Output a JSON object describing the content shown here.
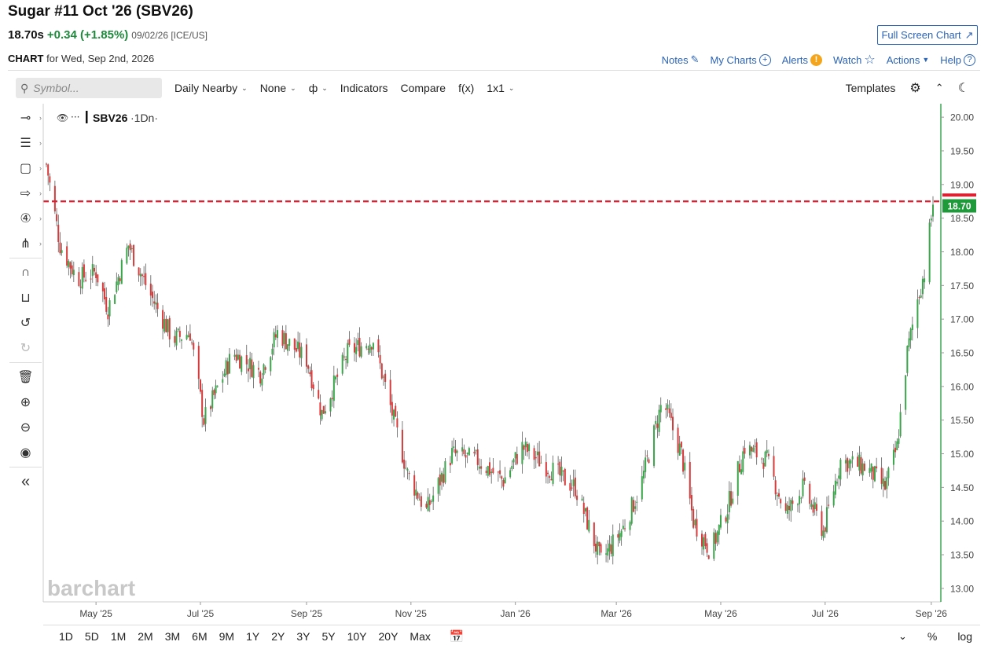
{
  "header": {
    "title": "Sugar #11 Oct '26 (SBV26)",
    "last": "18.70s",
    "change": "+0.34 (+1.85%)",
    "meta": "09/02/26 [ICE/US]",
    "fullscreen_label": "Full Screen Chart",
    "chart_word": "CHART",
    "chart_date": "for Wed, Sep 2nd, 2026"
  },
  "links": {
    "notes": "Notes",
    "mycharts": "My Charts",
    "alerts": "Alerts",
    "watch": "Watch",
    "actions": "Actions",
    "help": "Help"
  },
  "toolbar": {
    "search_placeholder": "Symbol...",
    "interval": "Daily Nearby",
    "none": "None",
    "indicators": "Indicators",
    "compare": "Compare",
    "fx": "f(x)",
    "layout": "1x1",
    "templates": "Templates"
  },
  "legend": {
    "symbol": "SBV26",
    "interval": "·1Dn·"
  },
  "watermark": "barchart",
  "bottom": {
    "ranges": [
      "1D",
      "5D",
      "1M",
      "2M",
      "3M",
      "6M",
      "9M",
      "1Y",
      "2Y",
      "3Y",
      "5Y",
      "10Y",
      "20Y",
      "Max"
    ],
    "percent": "%",
    "log": "log"
  },
  "colors": {
    "up": "#3aa54a",
    "down": "#d63a3a",
    "accent": "#2b63b5",
    "price_tag": "#1e9a3a",
    "ref_line": "#e02030"
  },
  "chart_data": {
    "type": "candlestick",
    "ylim": [
      12.8,
      20.2
    ],
    "yticks": [
      13.0,
      13.5,
      14.0,
      14.5,
      15.0,
      15.5,
      16.0,
      16.5,
      17.0,
      17.5,
      18.0,
      18.5,
      19.0,
      19.5,
      20.0
    ],
    "x_labels": [
      "May '25",
      "Jul '25",
      "Sep '25",
      "Nov '25",
      "Jan '26",
      "Mar '26",
      "May '26",
      "Jul '26",
      "Sep '26"
    ],
    "x_label_dates": [
      "2025-05-01",
      "2025-07-01",
      "2025-09-01",
      "2025-11-01",
      "2026-01-01",
      "2026-03-01",
      "2026-05-01",
      "2026-07-01",
      "2026-09-01"
    ],
    "start_date": "2025-04-02",
    "end_date": "2026-09-02",
    "last_price": 18.7,
    "last_price_label": "18.70",
    "reference_line": 18.75,
    "close_path": [
      {
        "date": "2025-04-02",
        "close": 19.3
      },
      {
        "date": "2025-04-10",
        "close": 18.1
      },
      {
        "date": "2025-04-20",
        "close": 17.6
      },
      {
        "date": "2025-05-01",
        "close": 17.7
      },
      {
        "date": "2025-05-08",
        "close": 17.15
      },
      {
        "date": "2025-05-20",
        "close": 18.1
      },
      {
        "date": "2025-06-01",
        "close": 17.4
      },
      {
        "date": "2025-06-15",
        "close": 16.7
      },
      {
        "date": "2025-06-25",
        "close": 16.8
      },
      {
        "date": "2025-07-03",
        "close": 15.5
      },
      {
        "date": "2025-07-20",
        "close": 16.5
      },
      {
        "date": "2025-08-05",
        "close": 16.2
      },
      {
        "date": "2025-08-15",
        "close": 16.8
      },
      {
        "date": "2025-09-01",
        "close": 16.4
      },
      {
        "date": "2025-09-10",
        "close": 15.6
      },
      {
        "date": "2025-09-25",
        "close": 16.5
      },
      {
        "date": "2025-10-10",
        "close": 16.7
      },
      {
        "date": "2025-10-20",
        "close": 15.7
      },
      {
        "date": "2025-10-30",
        "close": 14.7
      },
      {
        "date": "2025-11-10",
        "close": 14.15
      },
      {
        "date": "2025-11-25",
        "close": 15.0
      },
      {
        "date": "2025-12-10",
        "close": 14.9
      },
      {
        "date": "2025-12-25",
        "close": 14.6
      },
      {
        "date": "2026-01-05",
        "close": 15.1
      },
      {
        "date": "2026-01-20",
        "close": 14.8
      },
      {
        "date": "2026-02-05",
        "close": 14.5
      },
      {
        "date": "2026-02-20",
        "close": 13.4
      },
      {
        "date": "2026-03-05",
        "close": 13.9
      },
      {
        "date": "2026-03-15",
        "close": 14.5
      },
      {
        "date": "2026-03-28",
        "close": 15.8
      },
      {
        "date": "2026-04-08",
        "close": 15.0
      },
      {
        "date": "2026-04-15",
        "close": 14.0
      },
      {
        "date": "2026-04-25",
        "close": 13.55
      },
      {
        "date": "2026-05-05",
        "close": 14.2
      },
      {
        "date": "2026-05-15",
        "close": 15.1
      },
      {
        "date": "2026-05-28",
        "close": 14.9
      },
      {
        "date": "2026-06-08",
        "close": 14.1
      },
      {
        "date": "2026-06-18",
        "close": 14.5
      },
      {
        "date": "2026-06-30",
        "close": 13.85
      },
      {
        "date": "2026-07-10",
        "close": 14.9
      },
      {
        "date": "2026-07-25",
        "close": 14.8
      },
      {
        "date": "2026-08-05",
        "close": 14.5
      },
      {
        "date": "2026-08-12",
        "close": 15.1
      },
      {
        "date": "2026-08-18",
        "close": 16.5
      },
      {
        "date": "2026-08-24",
        "close": 17.3
      },
      {
        "date": "2026-08-28",
        "close": 17.7
      },
      {
        "date": "2026-09-02",
        "close": 18.7
      }
    ]
  }
}
